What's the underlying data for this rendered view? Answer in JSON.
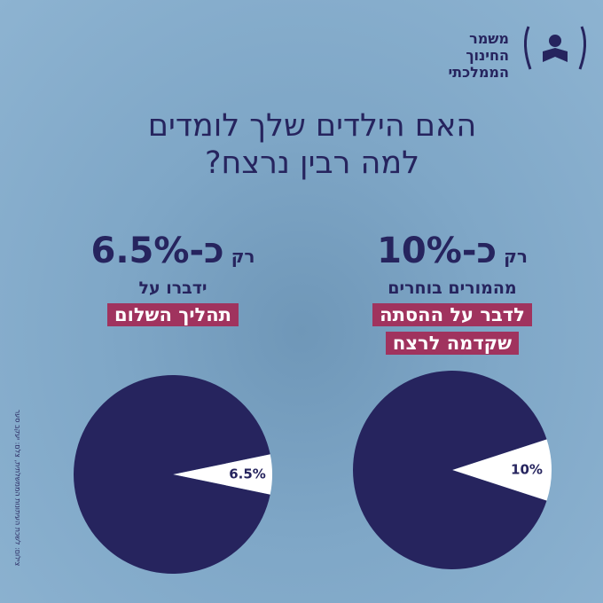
{
  "logo": {
    "lines": [
      "משמר",
      "החינוך",
      "הממלכתי"
    ]
  },
  "title": {
    "lines": [
      "האם הילדים שלך לומדים",
      "למה רבין נרצח?"
    ]
  },
  "credit": "צילום: לשכת העיתונות הממשלתית, צלם: יעקב סער",
  "chart_data": [
    {
      "type": "pie",
      "prefix": "רק",
      "headline": "כ-6.5%",
      "text": "ידברו על",
      "highlight": [
        "תהליך השלום"
      ],
      "values": [
        6.5,
        93.5
      ],
      "value_labels": [
        "6.5%",
        null
      ],
      "colors": [
        "#ffffff",
        "#26245e"
      ]
    },
    {
      "type": "pie",
      "prefix": "רק",
      "headline": "כ-10%",
      "text": "מהמורים בוחרים",
      "highlight": [
        "לדבר על ההסתה",
        "שקדמה לרצח"
      ],
      "values": [
        10,
        90
      ],
      "value_labels": [
        "10%",
        null
      ],
      "colors": [
        "#ffffff",
        "#26245e"
      ]
    }
  ]
}
